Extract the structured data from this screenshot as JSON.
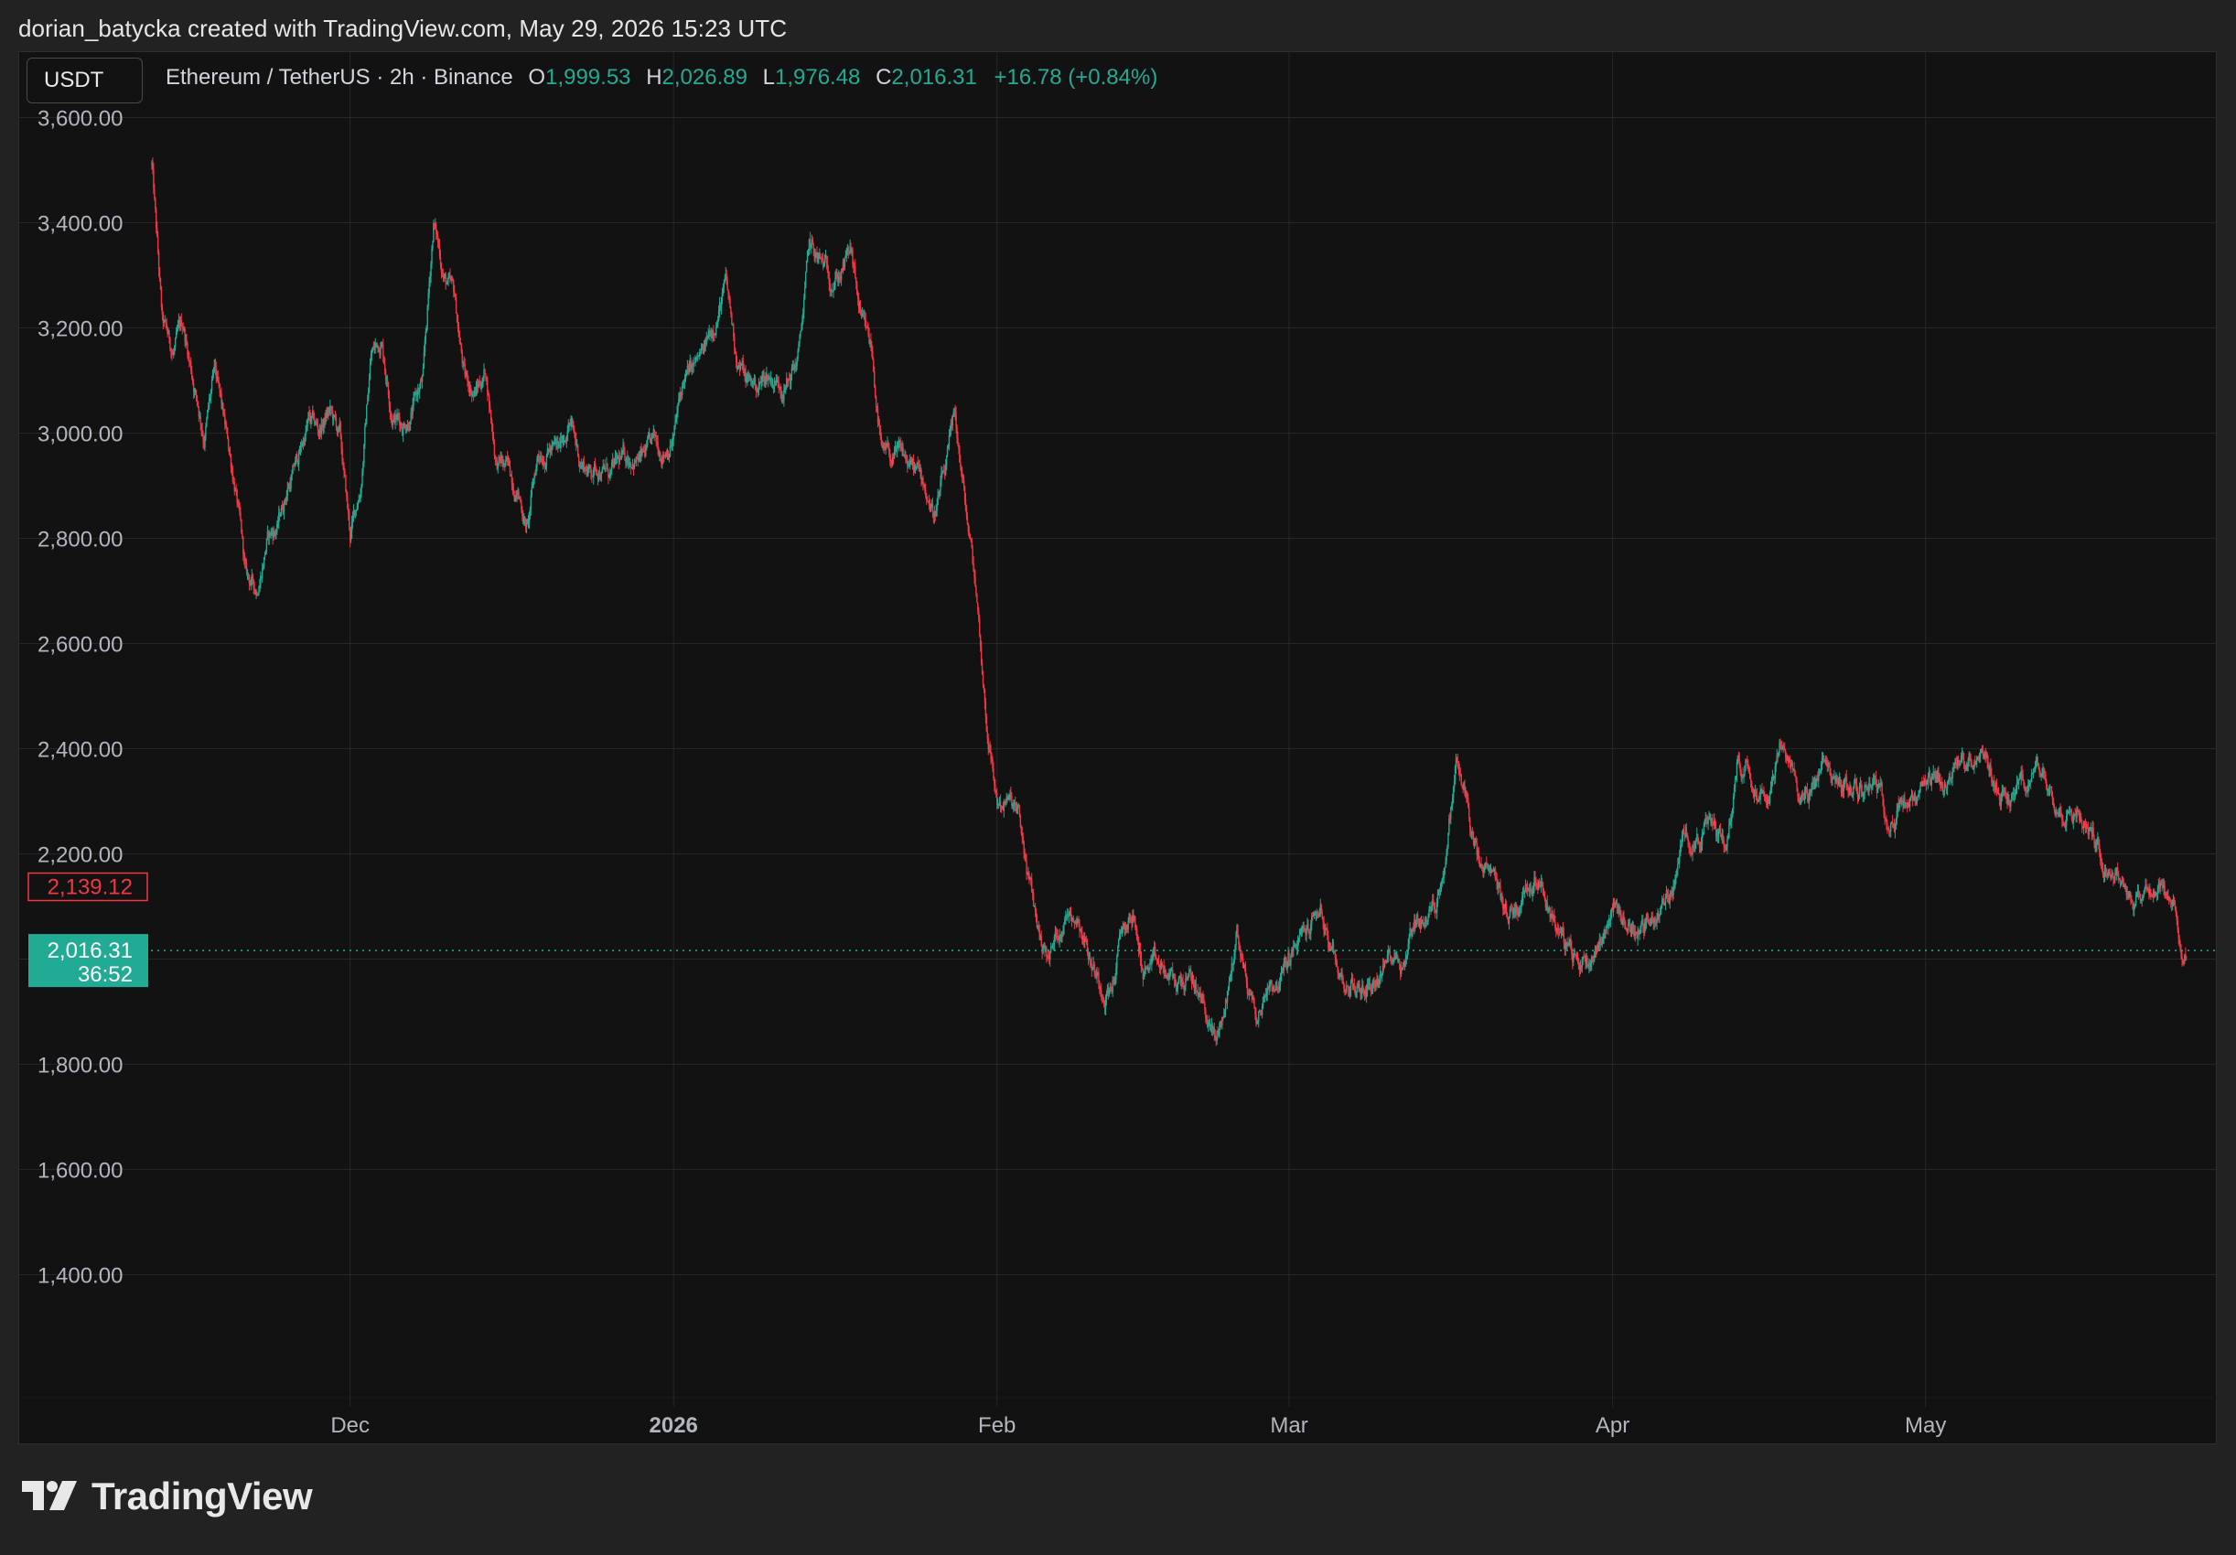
{
  "credit": "dorian_batycka created with TradingView.com, May 29, 2026 15:23 UTC",
  "symbol_box": "USDT",
  "legend": {
    "title": "Ethereum / TetherUS · 2h · Binance",
    "o_label": "O",
    "o_value": "1,999.53",
    "h_label": "H",
    "h_value": "2,026.89",
    "l_label": "L",
    "l_value": "1,976.48",
    "c_label": "C",
    "c_value": "2,016.31",
    "change": "+16.78 (+0.84%)"
  },
  "brand": "TradingView",
  "colors": {
    "up": "#22ab94",
    "down": "#f23645",
    "background": "#121212",
    "grid": "#262626"
  },
  "chart_data": {
    "type": "candlestick",
    "title": "",
    "xlabel": "",
    "ylabel": "",
    "y_ticks": [
      "1,400.00",
      "1,600.00",
      "1,800.00",
      "2,000.00",
      "2,200.00",
      "2,400.00",
      "2,600.00",
      "2,800.00",
      "3,000.00",
      "3,200.00",
      "3,400.00",
      "3,600.00"
    ],
    "y_tick_values": [
      1400,
      1600,
      1800,
      2000,
      2200,
      2400,
      2600,
      2800,
      3000,
      3200,
      3400,
      3600
    ],
    "ylim": [
      1220,
      3620
    ],
    "x_ticks": [
      {
        "label": "Dec",
        "date": "2025-12-01",
        "bold": false
      },
      {
        "label": "2026",
        "date": "2026-01-01",
        "bold": true
      },
      {
        "label": "Feb",
        "date": "2026-02-01",
        "bold": false
      },
      {
        "label": "Mar",
        "date": "2026-03-01",
        "bold": false
      },
      {
        "label": "Apr",
        "date": "2026-04-01",
        "bold": false
      },
      {
        "label": "May",
        "date": "2026-05-01",
        "bold": false
      }
    ],
    "x_range": [
      "2025-11-12",
      "2026-05-29"
    ],
    "last_price": "2,016.31",
    "last_price_value": 2016.31,
    "countdown": "36:52",
    "marker_price": "2,139.12",
    "marker_price_value": 2139.12,
    "price_path": [
      {
        "date": "2025-11-12",
        "price": 3510
      },
      {
        "date": "2025-11-13",
        "price": 3200
      },
      {
        "date": "2025-11-14",
        "price": 3150
      },
      {
        "date": "2025-11-15",
        "price": 3200
      },
      {
        "date": "2025-11-16",
        "price": 3100
      },
      {
        "date": "2025-11-17",
        "price": 3000
      },
      {
        "date": "2025-11-18",
        "price": 3110
      },
      {
        "date": "2025-11-19",
        "price": 3000
      },
      {
        "date": "2025-11-20",
        "price": 2900
      },
      {
        "date": "2025-11-21",
        "price": 2720
      },
      {
        "date": "2025-11-22",
        "price": 2700
      },
      {
        "date": "2025-11-23",
        "price": 2800
      },
      {
        "date": "2025-11-24",
        "price": 2820
      },
      {
        "date": "2025-11-25",
        "price": 2900
      },
      {
        "date": "2025-11-26",
        "price": 2950
      },
      {
        "date": "2025-11-27",
        "price": 3020
      },
      {
        "date": "2025-11-28",
        "price": 3000
      },
      {
        "date": "2025-11-29",
        "price": 3040
      },
      {
        "date": "2025-11-30",
        "price": 2990
      },
      {
        "date": "2025-12-01",
        "price": 2800
      },
      {
        "date": "2025-12-02",
        "price": 2900
      },
      {
        "date": "2025-12-03",
        "price": 3150
      },
      {
        "date": "2025-12-04",
        "price": 3180
      },
      {
        "date": "2025-12-05",
        "price": 3050
      },
      {
        "date": "2025-12-06",
        "price": 3020
      },
      {
        "date": "2025-12-07",
        "price": 3050
      },
      {
        "date": "2025-12-08",
        "price": 3100
      },
      {
        "date": "2025-12-09",
        "price": 3400
      },
      {
        "date": "2025-12-10",
        "price": 3300
      },
      {
        "date": "2025-12-11",
        "price": 3250
      },
      {
        "date": "2025-12-12",
        "price": 3100
      },
      {
        "date": "2025-12-13",
        "price": 3080
      },
      {
        "date": "2025-12-14",
        "price": 3120
      },
      {
        "date": "2025-12-15",
        "price": 2950
      },
      {
        "date": "2025-12-16",
        "price": 2930
      },
      {
        "date": "2025-12-17",
        "price": 2900
      },
      {
        "date": "2025-12-18",
        "price": 2820
      },
      {
        "date": "2025-12-19",
        "price": 2960
      },
      {
        "date": "2025-12-20",
        "price": 2980
      },
      {
        "date": "2025-12-21",
        "price": 2960
      },
      {
        "date": "2025-12-22",
        "price": 3030
      },
      {
        "date": "2025-12-23",
        "price": 2950
      },
      {
        "date": "2025-12-24",
        "price": 2930
      },
      {
        "date": "2025-12-25",
        "price": 2940
      },
      {
        "date": "2025-12-26",
        "price": 2920
      },
      {
        "date": "2025-12-27",
        "price": 2940
      },
      {
        "date": "2025-12-28",
        "price": 2960
      },
      {
        "date": "2025-12-29",
        "price": 2950
      },
      {
        "date": "2025-12-30",
        "price": 2970
      },
      {
        "date": "2025-12-31",
        "price": 2970
      },
      {
        "date": "2026-01-01",
        "price": 3000
      },
      {
        "date": "2026-01-02",
        "price": 3100
      },
      {
        "date": "2026-01-03",
        "price": 3120
      },
      {
        "date": "2026-01-04",
        "price": 3150
      },
      {
        "date": "2026-01-05",
        "price": 3220
      },
      {
        "date": "2026-01-06",
        "price": 3280
      },
      {
        "date": "2026-01-07",
        "price": 3150
      },
      {
        "date": "2026-01-08",
        "price": 3100
      },
      {
        "date": "2026-01-09",
        "price": 3090
      },
      {
        "date": "2026-01-10",
        "price": 3110
      },
      {
        "date": "2026-01-11",
        "price": 3100
      },
      {
        "date": "2026-01-12",
        "price": 3100
      },
      {
        "date": "2026-01-13",
        "price": 3150
      },
      {
        "date": "2026-01-14",
        "price": 3350
      },
      {
        "date": "2026-01-15",
        "price": 3320
      },
      {
        "date": "2026-01-16",
        "price": 3300
      },
      {
        "date": "2026-01-17",
        "price": 3310
      },
      {
        "date": "2026-01-18",
        "price": 3340
      },
      {
        "date": "2026-01-19",
        "price": 3200
      },
      {
        "date": "2026-01-20",
        "price": 3150
      },
      {
        "date": "2026-01-21",
        "price": 2950
      },
      {
        "date": "2026-01-22",
        "price": 2950
      },
      {
        "date": "2026-01-23",
        "price": 2950
      },
      {
        "date": "2026-01-24",
        "price": 2930
      },
      {
        "date": "2026-01-25",
        "price": 2900
      },
      {
        "date": "2026-01-26",
        "price": 2850
      },
      {
        "date": "2026-01-27",
        "price": 2920
      },
      {
        "date": "2026-01-28",
        "price": 3020
      },
      {
        "date": "2026-01-29",
        "price": 2850
      },
      {
        "date": "2026-01-30",
        "price": 2700
      },
      {
        "date": "2026-01-31",
        "price": 2450
      },
      {
        "date": "2026-02-01",
        "price": 2300
      },
      {
        "date": "2026-02-02",
        "price": 2300
      },
      {
        "date": "2026-02-03",
        "price": 2270
      },
      {
        "date": "2026-02-04",
        "price": 2150
      },
      {
        "date": "2026-02-05",
        "price": 2050
      },
      {
        "date": "2026-02-06",
        "price": 2000
      },
      {
        "date": "2026-02-07",
        "price": 2060
      },
      {
        "date": "2026-02-08",
        "price": 2100
      },
      {
        "date": "2026-02-09",
        "price": 2080
      },
      {
        "date": "2026-02-10",
        "price": 2000
      },
      {
        "date": "2026-02-11",
        "price": 1950
      },
      {
        "date": "2026-02-12",
        "price": 1950
      },
      {
        "date": "2026-02-13",
        "price": 2050
      },
      {
        "date": "2026-02-14",
        "price": 2080
      },
      {
        "date": "2026-02-15",
        "price": 1980
      },
      {
        "date": "2026-02-16",
        "price": 1980
      },
      {
        "date": "2026-02-17",
        "price": 1970
      },
      {
        "date": "2026-02-18",
        "price": 1950
      },
      {
        "date": "2026-02-19",
        "price": 1960
      },
      {
        "date": "2026-02-20",
        "price": 1950
      },
      {
        "date": "2026-02-21",
        "price": 1900
      },
      {
        "date": "2026-02-22",
        "price": 1840
      },
      {
        "date": "2026-02-23",
        "price": 1920
      },
      {
        "date": "2026-02-24",
        "price": 2050
      },
      {
        "date": "2026-02-25",
        "price": 1950
      },
      {
        "date": "2026-02-26",
        "price": 1880
      },
      {
        "date": "2026-02-27",
        "price": 1960
      },
      {
        "date": "2026-02-28",
        "price": 1960
      },
      {
        "date": "2026-03-01",
        "price": 2000
      },
      {
        "date": "2026-03-02",
        "price": 2030
      },
      {
        "date": "2026-03-03",
        "price": 2060
      },
      {
        "date": "2026-03-04",
        "price": 2100
      },
      {
        "date": "2026-03-05",
        "price": 2000
      },
      {
        "date": "2026-03-06",
        "price": 1960
      },
      {
        "date": "2026-03-07",
        "price": 1950
      },
      {
        "date": "2026-03-08",
        "price": 1940
      },
      {
        "date": "2026-03-09",
        "price": 1960
      },
      {
        "date": "2026-03-10",
        "price": 1980
      },
      {
        "date": "2026-03-11",
        "price": 2020
      },
      {
        "date": "2026-03-12",
        "price": 2000
      },
      {
        "date": "2026-03-13",
        "price": 2080
      },
      {
        "date": "2026-03-14",
        "price": 2080
      },
      {
        "date": "2026-03-15",
        "price": 2100
      },
      {
        "date": "2026-03-16",
        "price": 2200
      },
      {
        "date": "2026-03-17",
        "price": 2370
      },
      {
        "date": "2026-03-18",
        "price": 2300
      },
      {
        "date": "2026-03-19",
        "price": 2180
      },
      {
        "date": "2026-03-20",
        "price": 2150
      },
      {
        "date": "2026-03-21",
        "price": 2130
      },
      {
        "date": "2026-03-22",
        "price": 2080
      },
      {
        "date": "2026-03-23",
        "price": 2110
      },
      {
        "date": "2026-03-24",
        "price": 2150
      },
      {
        "date": "2026-03-25",
        "price": 2170
      },
      {
        "date": "2026-03-26",
        "price": 2100
      },
      {
        "date": "2026-03-27",
        "price": 2050
      },
      {
        "date": "2026-03-28",
        "price": 2000
      },
      {
        "date": "2026-03-29",
        "price": 1990
      },
      {
        "date": "2026-03-30",
        "price": 2010
      },
      {
        "date": "2026-03-31",
        "price": 2050
      },
      {
        "date": "2026-04-01",
        "price": 2100
      },
      {
        "date": "2026-04-02",
        "price": 2080
      },
      {
        "date": "2026-04-03",
        "price": 2060
      },
      {
        "date": "2026-04-04",
        "price": 2060
      },
      {
        "date": "2026-04-05",
        "price": 2080
      },
      {
        "date": "2026-04-06",
        "price": 2100
      },
      {
        "date": "2026-04-07",
        "price": 2150
      },
      {
        "date": "2026-04-08",
        "price": 2250
      },
      {
        "date": "2026-04-09",
        "price": 2230
      },
      {
        "date": "2026-04-10",
        "price": 2250
      },
      {
        "date": "2026-04-11",
        "price": 2240
      },
      {
        "date": "2026-04-12",
        "price": 2230
      },
      {
        "date": "2026-04-13",
        "price": 2380
      },
      {
        "date": "2026-04-14",
        "price": 2370
      },
      {
        "date": "2026-04-15",
        "price": 2340
      },
      {
        "date": "2026-04-16",
        "price": 2330
      },
      {
        "date": "2026-04-17",
        "price": 2400
      },
      {
        "date": "2026-04-18",
        "price": 2350
      },
      {
        "date": "2026-04-19",
        "price": 2320
      },
      {
        "date": "2026-04-20",
        "price": 2310
      },
      {
        "date": "2026-04-21",
        "price": 2380
      },
      {
        "date": "2026-04-22",
        "price": 2340
      },
      {
        "date": "2026-04-23",
        "price": 2330
      },
      {
        "date": "2026-04-24",
        "price": 2320
      },
      {
        "date": "2026-04-25",
        "price": 2320
      },
      {
        "date": "2026-04-26",
        "price": 2360
      },
      {
        "date": "2026-04-27",
        "price": 2290
      },
      {
        "date": "2026-04-28",
        "price": 2280
      },
      {
        "date": "2026-04-29",
        "price": 2300
      },
      {
        "date": "2026-04-30",
        "price": 2290
      },
      {
        "date": "2026-05-01",
        "price": 2310
      },
      {
        "date": "2026-05-02",
        "price": 2320
      },
      {
        "date": "2026-05-03",
        "price": 2330
      },
      {
        "date": "2026-05-04",
        "price": 2360
      },
      {
        "date": "2026-05-05",
        "price": 2380
      },
      {
        "date": "2026-05-06",
        "price": 2400
      },
      {
        "date": "2026-05-07",
        "price": 2360
      },
      {
        "date": "2026-05-08",
        "price": 2330
      },
      {
        "date": "2026-05-09",
        "price": 2300
      },
      {
        "date": "2026-05-10",
        "price": 2330
      },
      {
        "date": "2026-05-11",
        "price": 2340
      },
      {
        "date": "2026-05-12",
        "price": 2360
      },
      {
        "date": "2026-05-13",
        "price": 2330
      },
      {
        "date": "2026-05-14",
        "price": 2300
      },
      {
        "date": "2026-05-15",
        "price": 2290
      },
      {
        "date": "2026-05-16",
        "price": 2270
      },
      {
        "date": "2026-05-17",
        "price": 2240
      },
      {
        "date": "2026-05-18",
        "price": 2200
      },
      {
        "date": "2026-05-19",
        "price": 2180
      },
      {
        "date": "2026-05-20",
        "price": 2150
      },
      {
        "date": "2026-05-21",
        "price": 2120
      },
      {
        "date": "2026-05-22",
        "price": 2130
      },
      {
        "date": "2026-05-23",
        "price": 2140
      },
      {
        "date": "2026-05-24",
        "price": 2120
      }
    ]
  }
}
